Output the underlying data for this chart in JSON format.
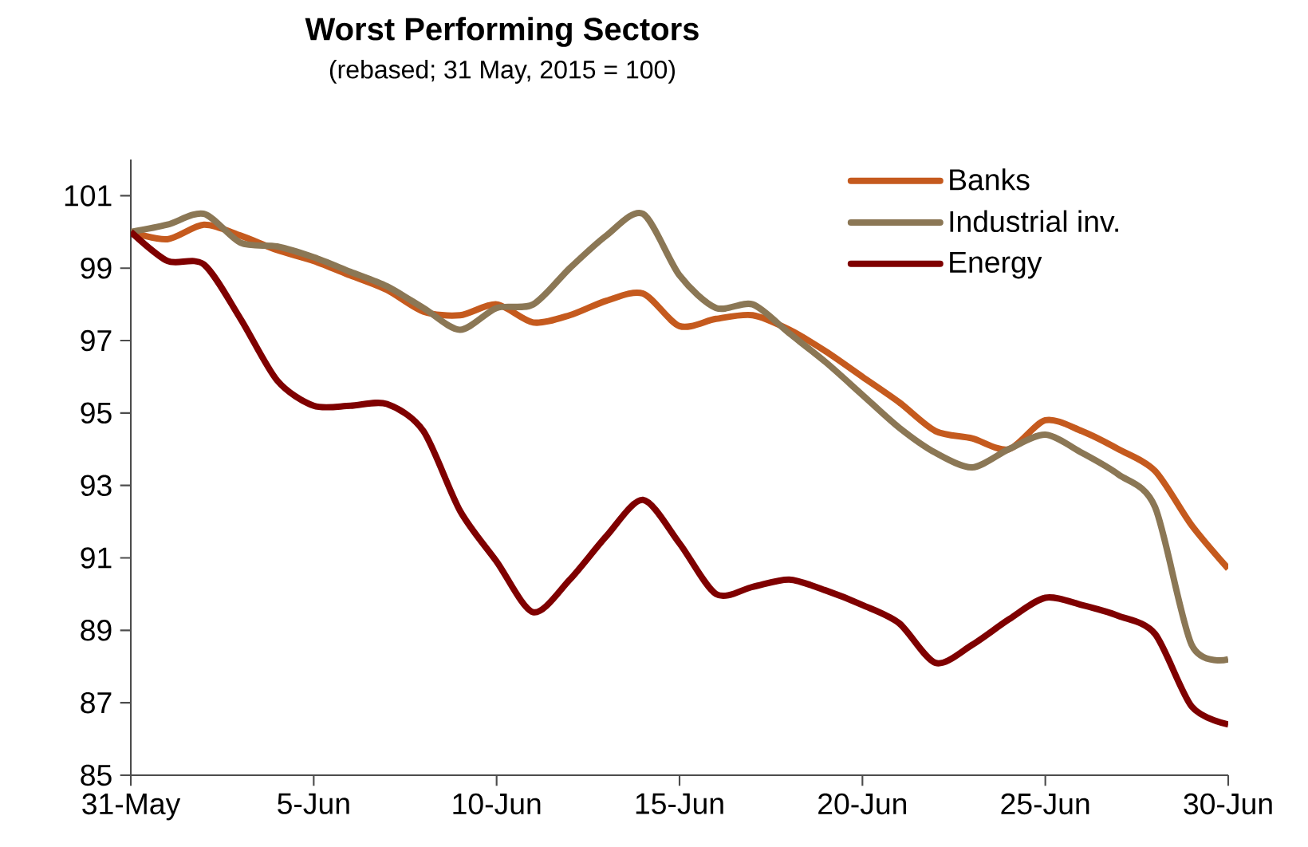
{
  "chart_data": {
    "type": "line",
    "title": "Worst Performing Sectors",
    "subtitle": "(rebased; 31 May, 2015 = 100)",
    "x": [
      "2015-05-31",
      "2015-06-01",
      "2015-06-02",
      "2015-06-03",
      "2015-06-04",
      "2015-06-05",
      "2015-06-06",
      "2015-06-07",
      "2015-06-08",
      "2015-06-09",
      "2015-06-10",
      "2015-06-11",
      "2015-06-12",
      "2015-06-13",
      "2015-06-14",
      "2015-06-15",
      "2015-06-16",
      "2015-06-17",
      "2015-06-18",
      "2015-06-19",
      "2015-06-20",
      "2015-06-21",
      "2015-06-22",
      "2015-06-23",
      "2015-06-24",
      "2015-06-25",
      "2015-06-26",
      "2015-06-27",
      "2015-06-28",
      "2015-06-29",
      "2015-06-30"
    ],
    "series": [
      {
        "name": "Banks",
        "color": "#c55a1e",
        "values": [
          100,
          99.8,
          100.2,
          99.9,
          99.5,
          99.2,
          98.8,
          98.4,
          97.8,
          97.7,
          98.0,
          97.5,
          97.7,
          98.1,
          98.3,
          97.4,
          97.6,
          97.7,
          97.3,
          96.7,
          96.0,
          95.3,
          94.5,
          94.3,
          94.0,
          94.8,
          94.5,
          94.0,
          93.4,
          91.9,
          90.7
        ]
      },
      {
        "name": "Industrial inv.",
        "color": "#8b7755",
        "values": [
          100,
          100.2,
          100.5,
          99.7,
          99.6,
          99.3,
          98.9,
          98.5,
          97.9,
          97.3,
          97.9,
          98.0,
          99.0,
          99.9,
          100.5,
          98.8,
          97.9,
          98.0,
          97.2,
          96.4,
          95.5,
          94.6,
          93.9,
          93.5,
          94.0,
          94.4,
          93.9,
          93.3,
          92.4,
          88.6,
          88.2
        ]
      },
      {
        "name": "Energy",
        "color": "#7f0000",
        "values": [
          100,
          99.2,
          99.1,
          97.6,
          95.9,
          95.2,
          95.2,
          95.25,
          94.5,
          92.3,
          90.9,
          89.5,
          90.4,
          91.6,
          92.6,
          91.4,
          90.0,
          90.2,
          90.4,
          90.1,
          89.7,
          89.2,
          88.1,
          88.6,
          89.3,
          89.9,
          89.7,
          89.4,
          88.9,
          86.9,
          86.4
        ]
      }
    ],
    "xlim": [
      "2015-05-31",
      "2015-06-30"
    ],
    "xticks": [
      {
        "value": "2015-05-31",
        "label": "31-May"
      },
      {
        "value": "2015-06-05",
        "label": "5-Jun"
      },
      {
        "value": "2015-06-10",
        "label": "10-Jun"
      },
      {
        "value": "2015-06-15",
        "label": "15-Jun"
      },
      {
        "value": "2015-06-20",
        "label": "20-Jun"
      },
      {
        "value": "2015-06-25",
        "label": "25-Jun"
      },
      {
        "value": "2015-06-30",
        "label": "30-Jun"
      }
    ],
    "ylim": [
      85,
      102
    ],
    "yticks": [
      85,
      87,
      89,
      91,
      93,
      95,
      97,
      99,
      101
    ],
    "legend": "top right",
    "grid": false,
    "marker": "none",
    "line_style": "solid"
  }
}
